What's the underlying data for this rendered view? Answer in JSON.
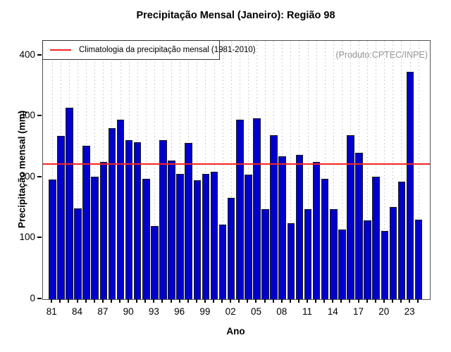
{
  "title": "Precipitação Mensal (Janeiro): Região 98",
  "legend": {
    "label": "Climatologia da precipitação mensal (1981-2010)",
    "line_color": "#f62424"
  },
  "watermark": "(Produto:CPTEC/INPE)",
  "chart_data": {
    "type": "bar",
    "title": "Precipitação Mensal (Janeiro): Região 98",
    "xlabel": "Ano",
    "ylabel": "Precipitação mensal (mm)",
    "ylim": [
      0,
      424
    ],
    "yticks": [
      0,
      100,
      200,
      300,
      400
    ],
    "grid": "dashed-vertical-per-bar",
    "legend_position": "top-left-inside",
    "bar_color": "#0000cc",
    "climatology_color": "#f62424",
    "climatology_label": "Climatologia da precipitação mensal (1981-2010)",
    "climatology_value": 222,
    "years": [
      1981,
      1982,
      1983,
      1984,
      1985,
      1986,
      1987,
      1988,
      1989,
      1990,
      1991,
      1992,
      1993,
      1994,
      1995,
      1996,
      1997,
      1998,
      1999,
      2000,
      2001,
      2002,
      2003,
      2004,
      2005,
      2006,
      2007,
      2008,
      2009,
      2010,
      2011,
      2012,
      2013,
      2014,
      2015,
      2016,
      2017,
      2018,
      2019,
      2020,
      2021,
      2022,
      2023,
      2024
    ],
    "values": [
      196,
      268,
      314,
      149,
      252,
      201,
      225,
      281,
      295,
      261,
      258,
      197,
      120,
      261,
      228,
      206,
      256,
      195,
      206,
      209,
      123,
      166,
      295,
      205,
      297,
      148,
      269,
      234,
      125,
      237,
      148,
      225,
      197,
      148,
      114,
      269,
      240,
      129,
      201,
      112,
      151,
      193,
      373,
      131
    ],
    "xtick_labels": [
      "81",
      "84",
      "87",
      "90",
      "93",
      "96",
      "99",
      "02",
      "05",
      "08",
      "11",
      "14",
      "17",
      "20",
      "23"
    ],
    "xtick_year_step": 3
  }
}
